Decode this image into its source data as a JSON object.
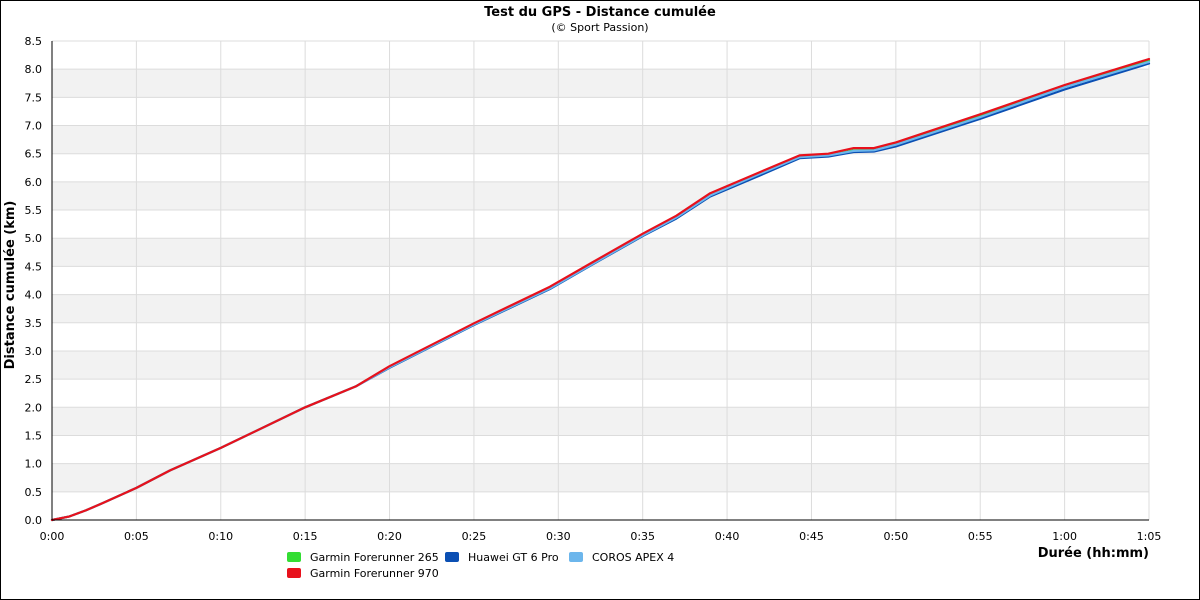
{
  "chart_data": {
    "type": "line",
    "title": "Test du GPS - Distance cumulée",
    "subtitle": "(© Sport Passion)",
    "xlabel": "Durée (hh:mm)",
    "ylabel": "Distance cumulée (km)",
    "xlim": [
      0,
      65
    ],
    "ylim": [
      0,
      8.5
    ],
    "x_ticks": [
      "0:00",
      "0:05",
      "0:10",
      "0:15",
      "0:20",
      "0:25",
      "0:30",
      "0:35",
      "0:40",
      "0:45",
      "0:50",
      "0:55",
      "1:00",
      "1:05"
    ],
    "y_ticks": [
      "0.0",
      "0.5",
      "1.0",
      "1.5",
      "2.0",
      "2.5",
      "3.0",
      "3.5",
      "4.0",
      "4.5",
      "5.0",
      "5.5",
      "6.0",
      "6.5",
      "7.0",
      "7.5",
      "8.0",
      "8.5"
    ],
    "grid": true,
    "legend_position": "bottom",
    "series": [
      {
        "name": "Garmin Forerunner 265",
        "color": "#33dd33",
        "x": [
          0,
          1,
          2,
          3,
          5,
          7,
          10,
          15,
          18,
          20,
          25,
          29.5,
          32,
          35,
          37,
          39,
          42,
          44.3,
          46,
          47.5,
          48.7,
          50,
          55,
          60,
          65
        ],
        "y": [
          0,
          0.06,
          0.17,
          0.3,
          0.57,
          0.88,
          1.28,
          2.0,
          2.37,
          2.72,
          3.48,
          4.11,
          4.54,
          5.05,
          5.38,
          5.77,
          6.17,
          6.44,
          6.47,
          6.56,
          6.57,
          6.68,
          7.17,
          7.7,
          8.15
        ]
      },
      {
        "name": "Huawei GT 6 Pro",
        "color": "#0b4fb3",
        "x": [
          0,
          1,
          2,
          3,
          5,
          7,
          10,
          15,
          18,
          20,
          25,
          29.5,
          32,
          35,
          37,
          39,
          42,
          44.3,
          46,
          47.5,
          48.7,
          50,
          55,
          60,
          65
        ],
        "y": [
          0,
          0.06,
          0.17,
          0.3,
          0.57,
          0.88,
          1.28,
          2.0,
          2.37,
          2.7,
          3.46,
          4.1,
          4.53,
          5.04,
          5.35,
          5.74,
          6.12,
          6.42,
          6.45,
          6.53,
          6.54,
          6.63,
          7.12,
          7.64,
          8.1
        ]
      },
      {
        "name": "COROS APEX 4",
        "color": "#6cb6ec",
        "x": [
          0,
          1,
          2,
          3,
          5,
          7,
          10,
          15,
          18,
          20,
          25,
          29.5,
          32,
          35,
          37,
          39,
          42,
          44.3,
          46,
          47.5,
          48.7,
          50,
          55,
          60,
          65
        ],
        "y": [
          0,
          0.06,
          0.17,
          0.3,
          0.57,
          0.88,
          1.28,
          2.0,
          2.37,
          2.71,
          3.47,
          4.11,
          4.54,
          5.05,
          5.37,
          5.76,
          6.15,
          6.44,
          6.47,
          6.55,
          6.56,
          6.66,
          7.15,
          7.68,
          8.13
        ]
      },
      {
        "name": "Garmin Forerunner 970",
        "color": "#e8111c",
        "x": [
          0,
          1,
          2,
          3,
          5,
          7,
          10,
          15,
          18,
          20,
          25,
          29.5,
          32,
          35,
          37,
          39,
          42,
          44.3,
          46,
          47.5,
          48.7,
          50,
          55,
          60,
          65
        ],
        "y": [
          0,
          0.06,
          0.17,
          0.3,
          0.57,
          0.88,
          1.28,
          2.0,
          2.37,
          2.73,
          3.49,
          4.14,
          4.57,
          5.08,
          5.4,
          5.8,
          6.18,
          6.47,
          6.5,
          6.6,
          6.6,
          6.7,
          7.2,
          7.72,
          8.18
        ]
      }
    ]
  }
}
